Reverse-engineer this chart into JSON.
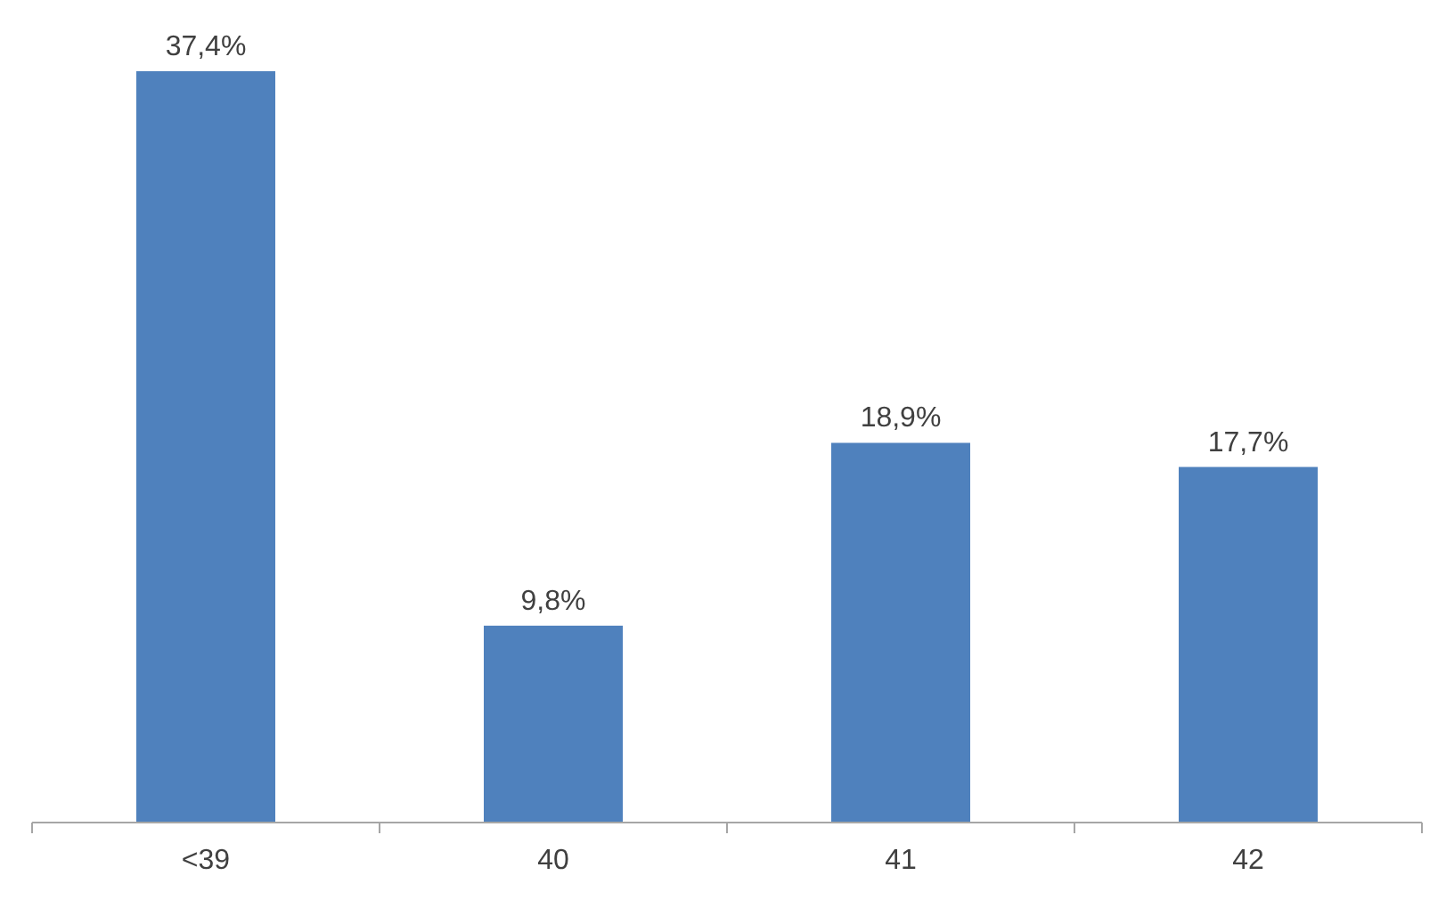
{
  "chart_data": {
    "type": "bar",
    "categories": [
      "<39",
      "40",
      "41",
      "42"
    ],
    "values": [
      37.4,
      9.8,
      18.9,
      17.7
    ],
    "value_labels": [
      "37,4%",
      "9,8%",
      "18,9%",
      "17,7%"
    ],
    "color": "#4f81bd"
  }
}
